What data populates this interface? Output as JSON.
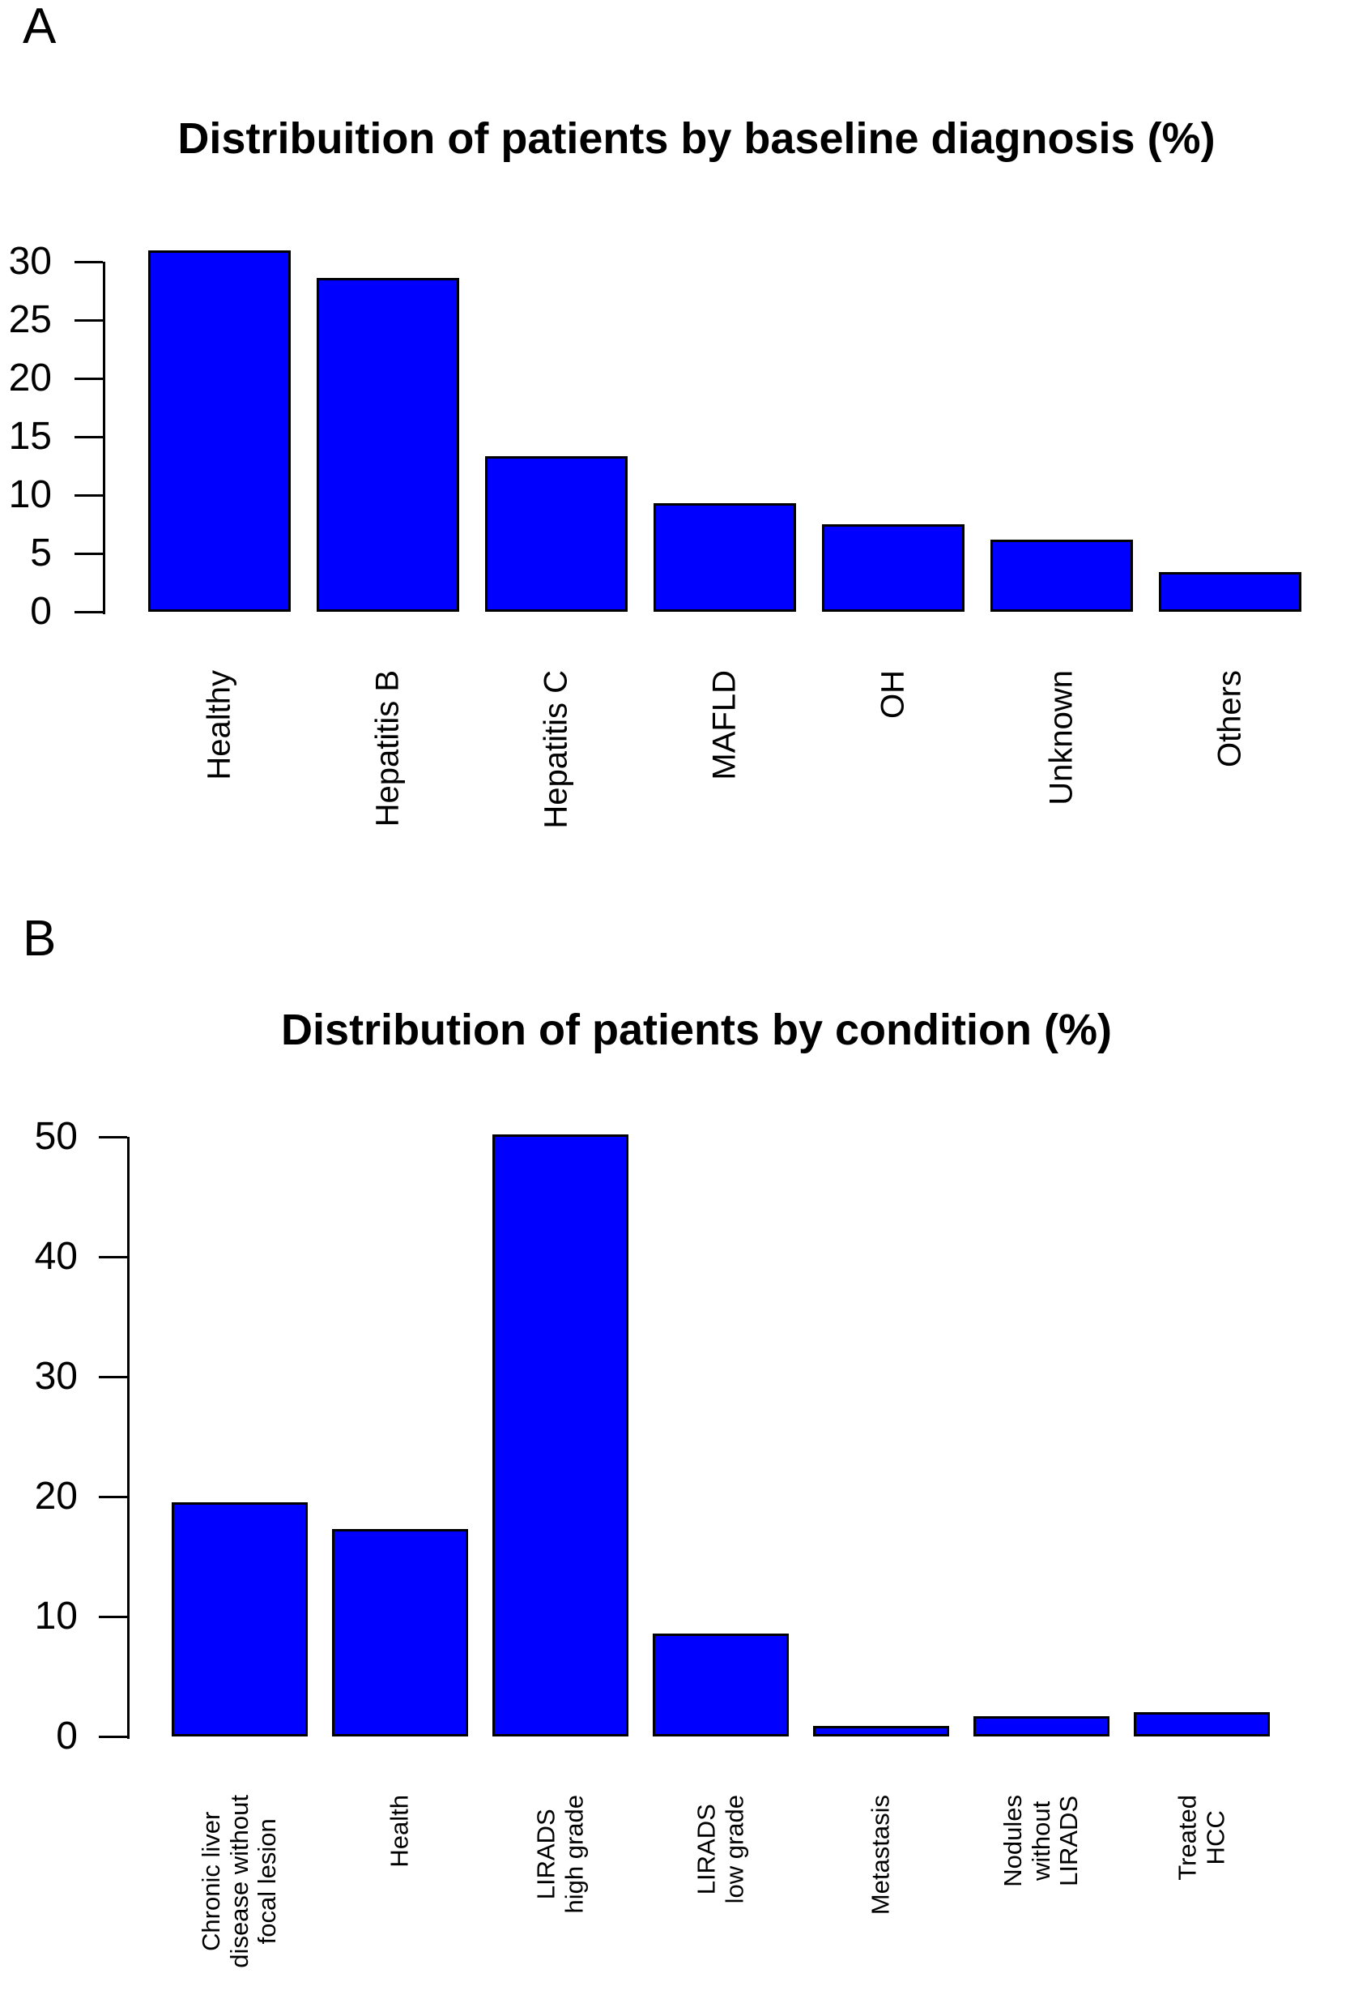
{
  "panel_labels": [
    "A",
    "B"
  ],
  "chart_data": [
    {
      "type": "bar",
      "title": "Distribuition of patients by baseline diagnosis (%)",
      "categories": [
        "Healthy",
        "Hepatitis B",
        "Hepatitis C",
        "MAFLD",
        "OH",
        "Unknown",
        "Others"
      ],
      "values": [
        31,
        28.6,
        13.3,
        9.3,
        7.5,
        6.2,
        3.4
      ],
      "xlabel": "",
      "ylabel": "",
      "ylim": [
        0,
        30
      ],
      "yticks": [
        0,
        5,
        10,
        15,
        20,
        25,
        30
      ],
      "grid": false,
      "legend": null,
      "bar_color": "#0000FF",
      "bar_border_color": "#000000",
      "x_label_rotation_deg": 90
    },
    {
      "type": "bar",
      "title": "Distribution of patients by condition (%)",
      "categories": [
        "Chronic liver\ndisease without\nfocal lesion",
        "Health",
        "LIRADS\nhigh grade",
        "LIRADS\nlow grade",
        "Metastasis",
        "Nodules\nwithout\nLIRADS",
        "Treated\nHCC"
      ],
      "values": [
        19.5,
        17.3,
        50.2,
        8.6,
        0.9,
        1.7,
        2.0
      ],
      "xlabel": "",
      "ylabel": "",
      "ylim": [
        0,
        50
      ],
      "yticks": [
        0,
        10,
        20,
        30,
        40,
        50
      ],
      "grid": false,
      "legend": null,
      "bar_color": "#0000FF",
      "bar_border_color": "#000000",
      "x_label_rotation_deg": 90
    }
  ]
}
